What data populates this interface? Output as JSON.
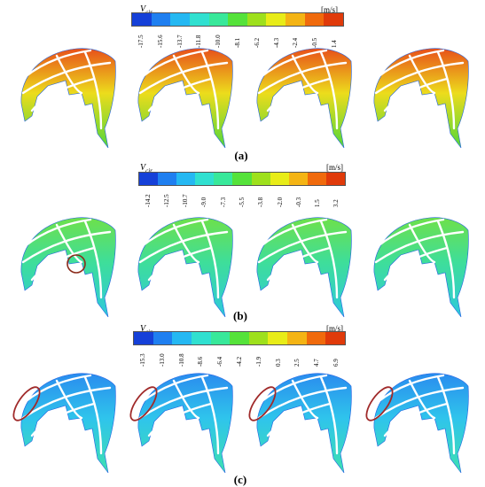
{
  "panels": [
    {
      "caption": "(a)",
      "quantity": "V",
      "quantity_sub": "cir",
      "unit": "[m/s]",
      "ticks": [
        "-17.5",
        "-15.6",
        "-13.7",
        "-11.8",
        "-10.0",
        "-8.1",
        "-6.2",
        "-4.3",
        "-2.4",
        "-0.5",
        "1.4"
      ],
      "colors": [
        "#1540d8",
        "#1f7ff0",
        "#25b8f2",
        "#30e0d0",
        "#38e89a",
        "#55e23a",
        "#9ee01c",
        "#e8ec18",
        "#f4b414",
        "#f06a0c",
        "#e03a0a"
      ],
      "fill_inner": "#ecdc1c",
      "fill_hot": "#e8501a",
      "fill_cool": "#52d63a",
      "highlight": ""
    },
    {
      "caption": "(b)",
      "quantity": "V",
      "quantity_sub": "cir",
      "unit": "[m/s]",
      "ticks": [
        "-14.2",
        "-12.5",
        "-10.7",
        "-9.0",
        "-7.3",
        "-5.5",
        "-3.8",
        "-2.0",
        "-0.3",
        "1.5",
        "3.2"
      ],
      "colors": [
        "#1540d8",
        "#1f7ff0",
        "#25b8f2",
        "#30e0d0",
        "#38e89a",
        "#55e23a",
        "#9ee01c",
        "#e8ec18",
        "#f4b414",
        "#f06a0c",
        "#e03a0a"
      ],
      "fill_inner": "#3ede9a",
      "fill_hot": "#6ee04a",
      "fill_cool": "#2ec8dc",
      "highlight": "circle"
    },
    {
      "caption": "(c)",
      "quantity": "V",
      "quantity_sub": "cir",
      "unit": "[m/s]",
      "ticks": [
        "-15.3",
        "-13.0",
        "-10.8",
        "-8.6",
        "-6.4",
        "-4.2",
        "-1.9",
        "0.3",
        "2.5",
        "4.7",
        "6.9"
      ],
      "colors": [
        "#1540d8",
        "#1f7ff0",
        "#25b8f2",
        "#30e0d0",
        "#38e89a",
        "#55e23a",
        "#9ee01c",
        "#e8ec18",
        "#f4b414",
        "#f06a0c",
        "#e03a0a"
      ],
      "fill_inner": "#2fc4ec",
      "fill_hot": "#2a8cee",
      "fill_cool": "#3ee0b0",
      "highlight": "ellipse"
    }
  ]
}
